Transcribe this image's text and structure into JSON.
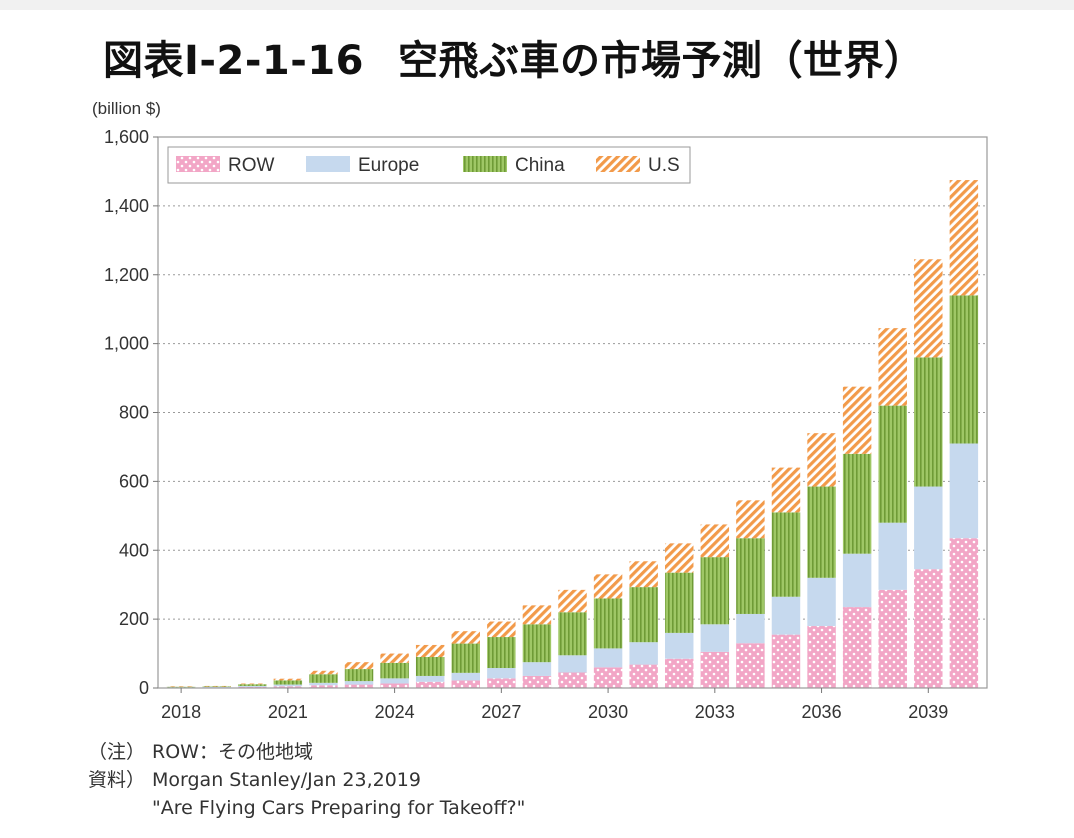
{
  "title": {
    "code": "図表I-2-1-16",
    "text": "空飛ぶ車の市場予測（世界）"
  },
  "chart_data": {
    "type": "bar",
    "stacked": true,
    "unit_label": "(billion $)",
    "ylim": [
      0,
      1600
    ],
    "yticks": [
      0,
      200,
      400,
      600,
      800,
      1000,
      1200,
      1400,
      1600
    ],
    "ytick_labels": [
      "0",
      "200",
      "400",
      "600",
      "800",
      "1,000",
      "1,200",
      "1,400",
      "1,600"
    ],
    "grid": true,
    "legend_position": "top-left",
    "categories": [
      "2018",
      "2019",
      "2020",
      "2021",
      "2022",
      "2023",
      "2024",
      "2025",
      "2026",
      "2027",
      "2028",
      "2029",
      "2030",
      "2031",
      "2032",
      "2033",
      "2034",
      "2035",
      "2036",
      "2037",
      "2038",
      "2039",
      "2040"
    ],
    "xtick_labels": [
      "2018",
      "2021",
      "2024",
      "2027",
      "2030",
      "2033",
      "2036",
      "2039"
    ],
    "series": [
      {
        "name": "ROW",
        "color": "#f2a6c6",
        "pattern": "dots",
        "values": [
          1,
          2,
          3,
          5,
          8,
          10,
          13,
          18,
          22,
          28,
          35,
          45,
          60,
          68,
          85,
          105,
          130,
          155,
          180,
          235,
          285,
          345,
          435
        ]
      },
      {
        "name": "Europe",
        "color": "#c6d9ee",
        "pattern": "solid",
        "values": [
          1,
          1,
          3,
          5,
          7,
          10,
          15,
          17,
          22,
          30,
          40,
          50,
          55,
          65,
          75,
          80,
          85,
          110,
          140,
          155,
          195,
          240,
          275
        ]
      },
      {
        "name": "China",
        "color": "#93bd5a",
        "pattern": "vlines",
        "values": [
          2,
          2,
          5,
          12,
          25,
          35,
          45,
          55,
          85,
          90,
          110,
          125,
          145,
          160,
          175,
          195,
          220,
          245,
          265,
          290,
          340,
          375,
          430
        ]
      },
      {
        "name": "U.S",
        "color": "#f5a35a",
        "pattern": "diag",
        "values": [
          1,
          1,
          2,
          5,
          10,
          20,
          27,
          35,
          36,
          45,
          55,
          65,
          70,
          75,
          85,
          95,
          110,
          130,
          155,
          195,
          225,
          285,
          335
        ]
      }
    ]
  },
  "notes": {
    "note_label": "（注）",
    "note_text": "ROW：その他地域",
    "source_label": "資料）",
    "source_line1": "Morgan Stanley/Jan 23,2019",
    "source_line2": "\"Are Flying Cars Preparing for Takeoff?\""
  }
}
